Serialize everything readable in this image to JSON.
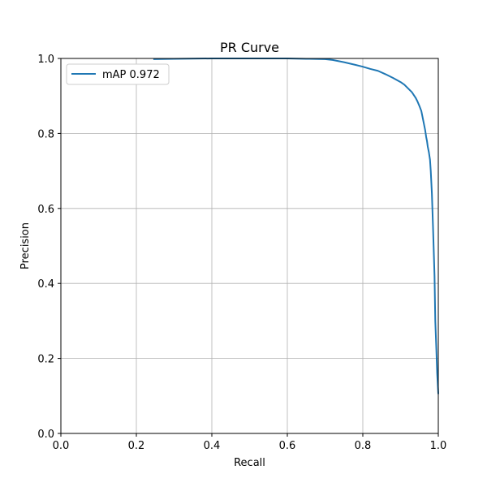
{
  "chart_data": {
    "type": "line",
    "title": "PR Curve",
    "xlabel": "Recall",
    "ylabel": "Precision",
    "xlim": [
      0.0,
      1.0
    ],
    "ylim": [
      0.0,
      1.0
    ],
    "xticks": [
      "0.0",
      "0.2",
      "0.4",
      "0.6",
      "0.8",
      "1.0"
    ],
    "yticks": [
      "0.0",
      "0.2",
      "0.4",
      "0.6",
      "0.8",
      "1.0"
    ],
    "grid": true,
    "legend_position": "top-left",
    "series": [
      {
        "name": "mAP 0.972",
        "color": "#1f77b4",
        "x": [
          0.245,
          0.3,
          0.4,
          0.5,
          0.55,
          0.6,
          0.65,
          0.7,
          0.72,
          0.75,
          0.78,
          0.8,
          0.82,
          0.84,
          0.86,
          0.88,
          0.9,
          0.91,
          0.92,
          0.93,
          0.94,
          0.945,
          0.95,
          0.955,
          0.96,
          0.965,
          0.968,
          0.97,
          0.972,
          0.975,
          0.978,
          0.98,
          0.983,
          0.986,
          0.99,
          0.992,
          0.995,
          0.997,
          1.0
        ],
        "y": [
          0.998,
          0.999,
          1.0,
          1.0,
          1.0,
          1.0,
          0.999,
          0.998,
          0.996,
          0.99,
          0.983,
          0.978,
          0.972,
          0.967,
          0.958,
          0.948,
          0.937,
          0.93,
          0.92,
          0.91,
          0.895,
          0.885,
          0.873,
          0.86,
          0.835,
          0.81,
          0.79,
          0.78,
          0.765,
          0.75,
          0.73,
          0.7,
          0.64,
          0.55,
          0.42,
          0.3,
          0.22,
          0.16,
          0.105
        ]
      }
    ]
  }
}
